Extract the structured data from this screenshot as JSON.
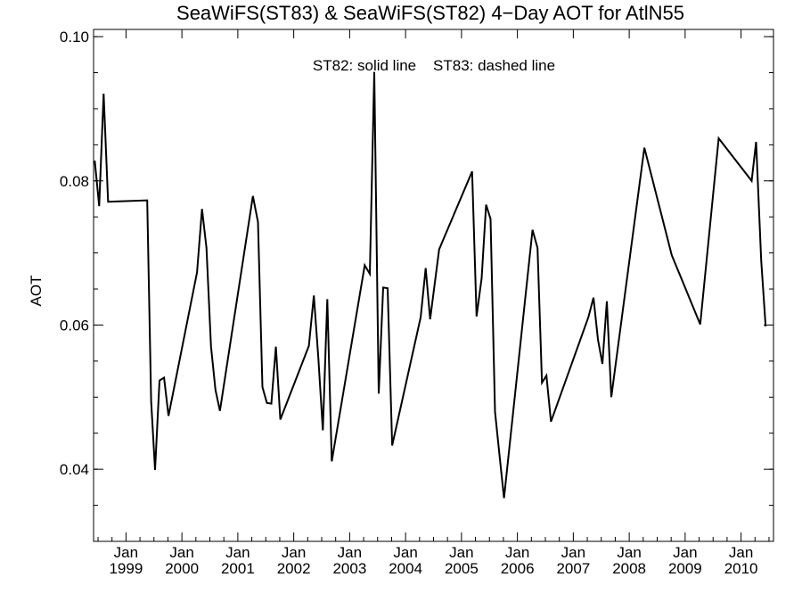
{
  "chart_data": {
    "type": "line",
    "title": "SeaWiFS(ST83) & SeaWiFS(ST82) 4−Day AOT for AtlN55",
    "ylabel": "AOT",
    "annotation": "ST82: solid line    ST83: dashed line",
    "ylim": [
      0.03,
      0.101
    ],
    "xlim": [
      1998.42,
      2010.58
    ],
    "y_ticks": [
      {
        "value": 0.04,
        "label": "0.04"
      },
      {
        "value": 0.06,
        "label": "0.06"
      },
      {
        "value": 0.08,
        "label": "0.08"
      },
      {
        "value": 0.1,
        "label": "0.10"
      }
    ],
    "y_minor_step": 0.005,
    "x_ticks": [
      {
        "value": 1999,
        "line1": "Jan",
        "line2": "1999"
      },
      {
        "value": 2000,
        "line1": "Jan",
        "line2": "2000"
      },
      {
        "value": 2001,
        "line1": "Jan",
        "line2": "2001"
      },
      {
        "value": 2002,
        "line1": "Jan",
        "line2": "2002"
      },
      {
        "value": 2003,
        "line1": "Jan",
        "line2": "2003"
      },
      {
        "value": 2004,
        "line1": "Jan",
        "line2": "2004"
      },
      {
        "value": 2005,
        "line1": "Jan",
        "line2": "2005"
      },
      {
        "value": 2006,
        "line1": "Jan",
        "line2": "2006"
      },
      {
        "value": 2007,
        "line1": "Jan",
        "line2": "2007"
      },
      {
        "value": 2008,
        "line1": "Jan",
        "line2": "2008"
      },
      {
        "value": 2009,
        "line1": "Jan",
        "line2": "2009"
      },
      {
        "value": 2010,
        "line1": "Jan",
        "line2": "2010"
      }
    ],
    "series": [
      {
        "style": "solid",
        "color": "#000000",
        "points": [
          [
            1998.44,
            0.0828
          ],
          [
            1998.52,
            0.0765
          ],
          [
            1998.6,
            0.0921
          ],
          [
            1998.68,
            0.0771
          ],
          [
            1999.38,
            0.0773
          ],
          [
            1999.45,
            0.0495
          ],
          [
            1999.52,
            0.0399
          ],
          [
            1999.6,
            0.0523
          ],
          [
            1999.68,
            0.0527
          ],
          [
            1999.76,
            0.0474
          ],
          [
            2000.27,
            0.0673
          ],
          [
            2000.36,
            0.0761
          ],
          [
            2000.44,
            0.0707
          ],
          [
            2000.52,
            0.057
          ],
          [
            2000.6,
            0.051
          ],
          [
            2000.68,
            0.0481
          ],
          [
            2001.27,
            0.0779
          ],
          [
            2001.36,
            0.0743
          ],
          [
            2001.44,
            0.0514
          ],
          [
            2001.52,
            0.0492
          ],
          [
            2001.6,
            0.0491
          ],
          [
            2001.68,
            0.057
          ],
          [
            2001.76,
            0.0469
          ],
          [
            2002.27,
            0.0571
          ],
          [
            2002.36,
            0.0641
          ],
          [
            2002.44,
            0.0555
          ],
          [
            2002.52,
            0.0454
          ],
          [
            2002.6,
            0.0636
          ],
          [
            2002.68,
            0.0411
          ],
          [
            2003.27,
            0.0683
          ],
          [
            2003.36,
            0.0671
          ],
          [
            2003.44,
            0.0951
          ],
          [
            2003.52,
            0.0505
          ],
          [
            2003.6,
            0.0652
          ],
          [
            2003.68,
            0.0651
          ],
          [
            2003.76,
            0.0433
          ],
          [
            2004.27,
            0.0611
          ],
          [
            2004.36,
            0.0679
          ],
          [
            2004.44,
            0.0608
          ],
          [
            2004.6,
            0.0705
          ],
          [
            2005.19,
            0.0813
          ],
          [
            2005.27,
            0.0612
          ],
          [
            2005.36,
            0.0665
          ],
          [
            2005.44,
            0.0767
          ],
          [
            2005.52,
            0.0747
          ],
          [
            2005.6,
            0.048
          ],
          [
            2005.68,
            0.042
          ],
          [
            2005.76,
            0.036
          ],
          [
            2006.27,
            0.0732
          ],
          [
            2006.36,
            0.0707
          ],
          [
            2006.44,
            0.052
          ],
          [
            2006.52,
            0.053
          ],
          [
            2006.6,
            0.0466
          ],
          [
            2007.27,
            0.0611
          ],
          [
            2007.36,
            0.0638
          ],
          [
            2007.44,
            0.058
          ],
          [
            2007.52,
            0.0546
          ],
          [
            2007.6,
            0.0633
          ],
          [
            2007.68,
            0.05
          ],
          [
            2008.27,
            0.0846
          ],
          [
            2008.76,
            0.0697
          ],
          [
            2009.27,
            0.0601
          ],
          [
            2009.6,
            0.0859
          ],
          [
            2010.19,
            0.08
          ],
          [
            2010.27,
            0.0854
          ],
          [
            2010.36,
            0.069
          ],
          [
            2010.44,
            0.0598
          ]
        ]
      }
    ]
  }
}
